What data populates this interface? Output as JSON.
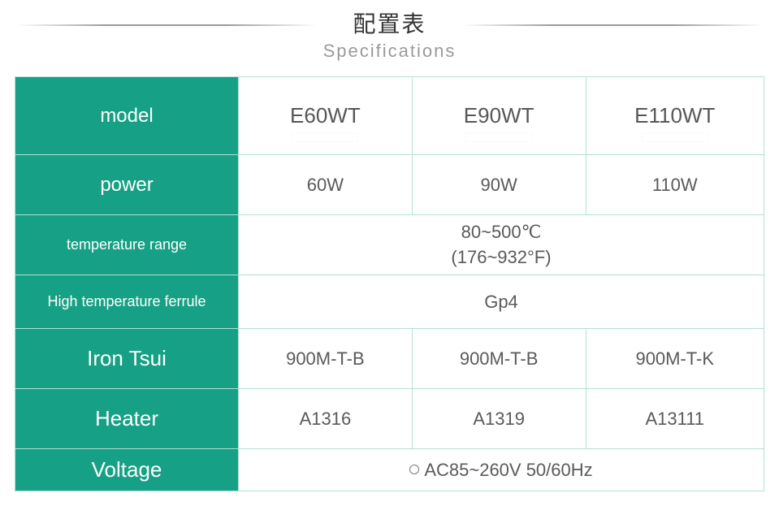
{
  "header": {
    "title_cn": "配置表",
    "title_en": "Specifications"
  },
  "labels": {
    "model": "model",
    "power": "power",
    "temp_range": "temperature range",
    "ferrule": "High temperature ferrule",
    "iron_tsui": "Iron Tsui",
    "heater": "Heater",
    "voltage": "Voltage"
  },
  "columns": {
    "c1": "E60WT",
    "c2": "E90WT",
    "c3": "E110WT"
  },
  "power": {
    "c1": "60W",
    "c2": "90W",
    "c3": "110W"
  },
  "temp_range": {
    "line1": "80~500℃",
    "line2": "(176~932°F)"
  },
  "ferrule": "Gp4",
  "iron_tsui": {
    "c1": "900M-T-B",
    "c2": "900M-T-B",
    "c3": "900M-T-K"
  },
  "heater": {
    "c1": "A1316",
    "c2": "A1319",
    "c3": "A13111"
  },
  "voltage": "AC85~260V  50/60Hz",
  "colors": {
    "header_bg": "#16a085",
    "border": "#b2e0d6",
    "text": "#5a5a5a",
    "subtitle": "#9a9a9a"
  }
}
